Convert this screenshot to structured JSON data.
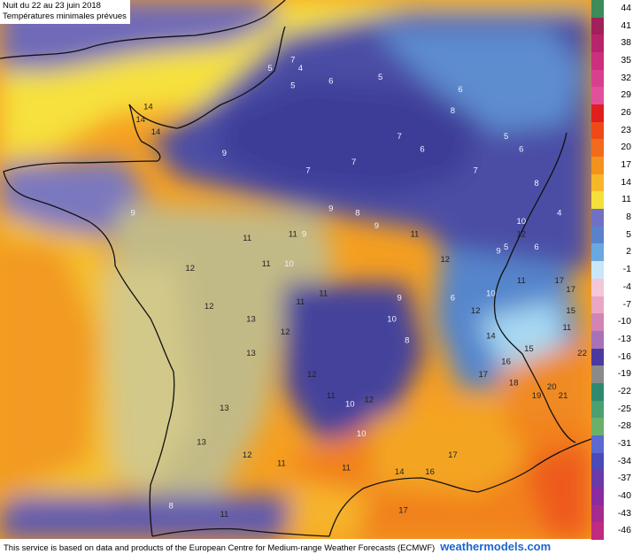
{
  "header": {
    "line1": "Nuit du 22 au 23 juin 2018",
    "line2": "Températures minimales prévues"
  },
  "footer": {
    "text": "This service is based on data and products of the European Centre for Medium-range Weather Forecasts (ECMWF)",
    "brand": "weathermodels.com"
  },
  "colors": {
    "ocean_warm": "#f4a21c",
    "ocean_yellow": "#f7e53a",
    "cool_land": "#4e4fa4",
    "mild_land": "#c9c089",
    "hot_land": "#f28a1f"
  },
  "scale": [
    {
      "value": "44",
      "color": "#3d8b57"
    },
    {
      "value": "41",
      "color": "#a0205a"
    },
    {
      "value": "38",
      "color": "#b8246c"
    },
    {
      "value": "35",
      "color": "#cc2f7c"
    },
    {
      "value": "32",
      "color": "#d8408e"
    },
    {
      "value": "29",
      "color": "#e2509a"
    },
    {
      "value": "26",
      "color": "#e01e1e"
    },
    {
      "value": "23",
      "color": "#ee4a18"
    },
    {
      "value": "20",
      "color": "#f26b1c"
    },
    {
      "value": "17",
      "color": "#f4921e"
    },
    {
      "value": "14",
      "color": "#f6b82a"
    },
    {
      "value": "11",
      "color": "#f5df3a"
    },
    {
      "value": "8",
      "color": "#7070c4"
    },
    {
      "value": "5",
      "color": "#5a82cc"
    },
    {
      "value": "2",
      "color": "#6aa8e0"
    },
    {
      "value": "-1",
      "color": "#c8e8f8"
    },
    {
      "value": "-4",
      "color": "#f3c7d8"
    },
    {
      "value": "-7",
      "color": "#eba6c3"
    },
    {
      "value": "-10",
      "color": "#d384b4"
    },
    {
      "value": "-13",
      "color": "#a872b8"
    },
    {
      "value": "-16",
      "color": "#4a3aa0"
    },
    {
      "value": "-19",
      "color": "#8a8a8a"
    },
    {
      "value": "-22",
      "color": "#2e8a6e"
    },
    {
      "value": "-25",
      "color": "#4aa070"
    },
    {
      "value": "-28",
      "color": "#6ab06a"
    },
    {
      "value": "-31",
      "color": "#5a6ad0"
    },
    {
      "value": "-34",
      "color": "#4a4ab8"
    },
    {
      "value": "-37",
      "color": "#6a3aa8"
    },
    {
      "value": "-40",
      "color": "#8a2aa0"
    },
    {
      "value": "-43",
      "color": "#a52a90"
    },
    {
      "value": "-46",
      "color": "#c02a80"
    }
  ],
  "temperatures": [
    {
      "t": "7",
      "x": 0.6,
      "y": 2.8
    },
    {
      "t": "4",
      "x": 0.8,
      "y": 2.6
    },
    {
      "t": "5",
      "x": 0.6,
      "y": 2.2
    },
    {
      "t": "5",
      "x": 0.0,
      "y": 2.6
    },
    {
      "t": "6",
      "x": 1.6,
      "y": 2.3
    },
    {
      "t": "5",
      "x": 2.9,
      "y": 2.4
    },
    {
      "t": "6",
      "x": 5.0,
      "y": 2.1
    },
    {
      "t": "8",
      "x": 4.8,
      "y": 1.6
    },
    {
      "t": "7",
      "x": 3.4,
      "y": 1.0
    },
    {
      "t": "6",
      "x": 6.6,
      "y": 0.7
    },
    {
      "t": "5",
      "x": 6.2,
      "y": 1.0
    },
    {
      "t": "7",
      "x": 5.4,
      "y": 0.2
    },
    {
      "t": "6",
      "x": 4.0,
      "y": 0.7
    },
    {
      "t": "8",
      "x": 7.0,
      "y": -0.1
    },
    {
      "t": "7",
      "x": 2.2,
      "y": 0.4
    },
    {
      "t": "7",
      "x": 1.0,
      "y": 0.2
    },
    {
      "t": "8",
      "x": 2.3,
      "y": -0.8
    },
    {
      "t": "9",
      "x": 1.6,
      "y": -0.7
    },
    {
      "t": "9",
      "x": 2.8,
      "y": -1.1
    },
    {
      "t": "9",
      "x": 0.9,
      "y": -1.3
    },
    {
      "t": "11",
      "x": 3.8,
      "y": -1.3
    },
    {
      "t": "10",
      "x": 6.6,
      "y": -1.0
    },
    {
      "t": "9",
      "x": 6.0,
      "y": -1.7
    },
    {
      "t": "10",
      "x": 5.8,
      "y": -2.7
    },
    {
      "t": "11",
      "x": 6.6,
      "y": -2.4
    },
    {
      "t": "12",
      "x": 4.6,
      "y": -1.9
    },
    {
      "t": "6",
      "x": 4.8,
      "y": -2.8
    },
    {
      "t": "12",
      "x": 5.4,
      "y": -3.1
    },
    {
      "t": "9",
      "x": 3.4,
      "y": -2.8
    },
    {
      "t": "10",
      "x": 3.2,
      "y": -3.3
    },
    {
      "t": "8",
      "x": 3.6,
      "y": -3.8
    },
    {
      "t": "14",
      "x": 5.8,
      "y": -3.7
    },
    {
      "t": "16",
      "x": 6.2,
      "y": -4.3
    },
    {
      "t": "15",
      "x": 6.8,
      "y": -4.0
    },
    {
      "t": "17",
      "x": 5.6,
      "y": -4.6
    },
    {
      "t": "18",
      "x": 6.4,
      "y": -4.8
    },
    {
      "t": "20",
      "x": 7.4,
      "y": -4.9
    },
    {
      "t": "19",
      "x": 7.0,
      "y": -5.1
    },
    {
      "t": "21",
      "x": 7.7,
      "y": -5.1
    },
    {
      "t": "22",
      "x": 8.2,
      "y": -4.1
    },
    {
      "t": "17",
      "x": 7.6,
      "y": -2.4
    },
    {
      "t": "17",
      "x": 7.9,
      "y": -2.6
    },
    {
      "t": "16",
      "x": 8.3,
      "y": -2.8
    },
    {
      "t": "15",
      "x": 7.9,
      "y": -3.1
    },
    {
      "t": "11",
      "x": 7.8,
      "y": -3.5
    },
    {
      "t": "6",
      "x": 7.0,
      "y": -1.6
    },
    {
      "t": "5",
      "x": 6.2,
      "y": -1.6
    },
    {
      "t": "4",
      "x": 7.6,
      "y": -0.8
    },
    {
      "t": "12",
      "x": 6.6,
      "y": -1.3
    },
    {
      "t": "14",
      "x": -3.2,
      "y": 1.7
    },
    {
      "t": "14",
      "x": -3.4,
      "y": 1.4
    },
    {
      "t": "14",
      "x": -3.0,
      "y": 1.1
    },
    {
      "t": "9",
      "x": -1.2,
      "y": 0.6
    },
    {
      "t": "9",
      "x": -3.6,
      "y": -0.8
    },
    {
      "t": "12",
      "x": -2.1,
      "y": -2.1
    },
    {
      "t": "12",
      "x": -1.6,
      "y": -3.0
    },
    {
      "t": "13",
      "x": -0.5,
      "y": -3.3
    },
    {
      "t": "12",
      "x": 0.4,
      "y": -3.6
    },
    {
      "t": "11",
      "x": 0.8,
      "y": -2.9
    },
    {
      "t": "13",
      "x": -0.5,
      "y": -4.1
    },
    {
      "t": "12",
      "x": 1.1,
      "y": -4.6
    },
    {
      "t": "11",
      "x": 1.6,
      "y": -5.1
    },
    {
      "t": "12",
      "x": 2.6,
      "y": -5.2
    },
    {
      "t": "13",
      "x": -1.2,
      "y": -5.4
    },
    {
      "t": "13",
      "x": -1.8,
      "y": -6.2
    },
    {
      "t": "12",
      "x": -0.6,
      "y": -6.5
    },
    {
      "t": "11",
      "x": 0.3,
      "y": -6.7
    },
    {
      "t": "11",
      "x": 2.0,
      "y": -6.8
    },
    {
      "t": "14",
      "x": 3.4,
      "y": -6.9
    },
    {
      "t": "16",
      "x": 4.2,
      "y": -6.9
    },
    {
      "t": "17",
      "x": 4.8,
      "y": -6.5
    },
    {
      "t": "8",
      "x": -2.6,
      "y": -7.7
    },
    {
      "t": "11",
      "x": -1.2,
      "y": -7.9
    },
    {
      "t": "17",
      "x": 3.5,
      "y": -7.8
    },
    {
      "t": "10",
      "x": 2.1,
      "y": -5.3
    },
    {
      "t": "10",
      "x": 2.4,
      "y": -6.0
    },
    {
      "t": "11",
      "x": 0.6,
      "y": -1.3
    },
    {
      "t": "10",
      "x": 0.5,
      "y": -2.0
    },
    {
      "t": "11",
      "x": -0.6,
      "y": -1.4
    },
    {
      "t": "11",
      "x": 1.4,
      "y": -2.7
    },
    {
      "t": "11",
      "x": -0.1,
      "y": -2.0
    }
  ]
}
